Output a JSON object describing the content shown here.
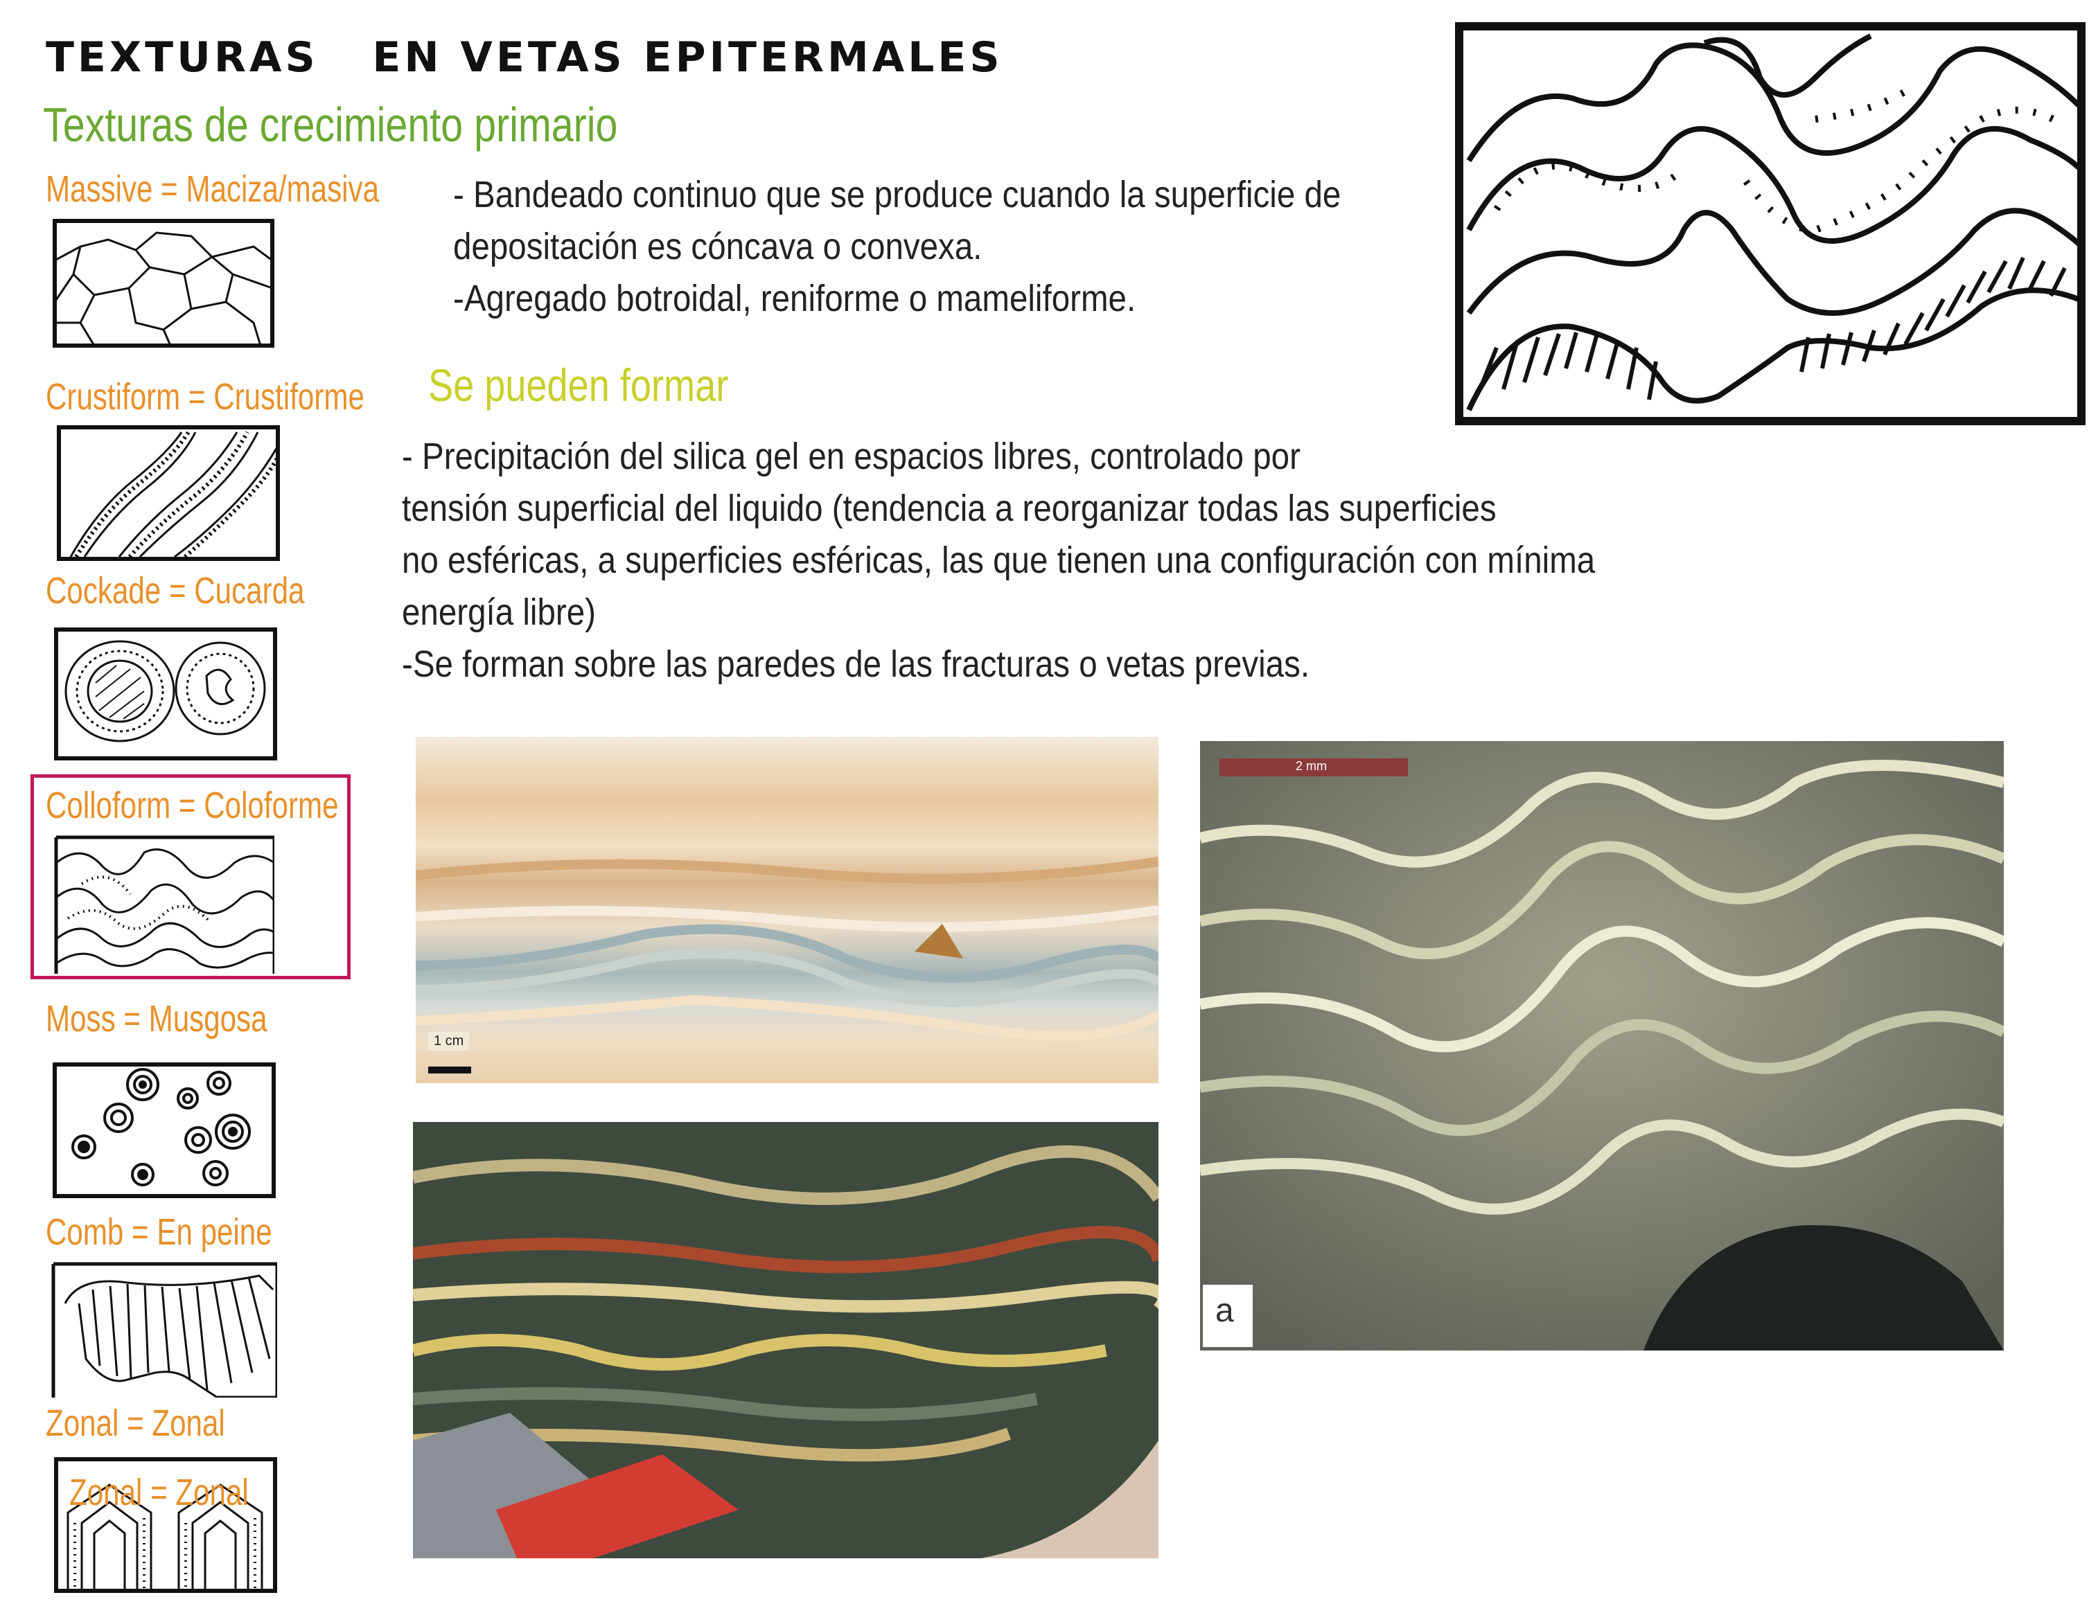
{
  "title": "TEXTURAS   EN VETAS EPITERMALES",
  "subtitle": "Texturas de crecimiento  primario",
  "textures": [
    {
      "label": "Massive =  Maciza/masiva",
      "icon": "massive-texture-sketch"
    },
    {
      "label": "Crustiform = Crustiforme",
      "icon": "crustiform-texture-sketch"
    },
    {
      "label": "Cockade = Cucarda",
      "icon": "cockade-texture-sketch"
    },
    {
      "label": "Colloform = Coloforme",
      "icon": "colloform-texture-sketch",
      "highlighted": true
    },
    {
      "label": "Moss = Musgosa",
      "icon": "moss-texture-sketch"
    },
    {
      "label": "Comb = En peine",
      "icon": "comb-texture-sketch"
    },
    {
      "label": "Zonal = Zonal",
      "icon": "zonal-texture-sketch"
    }
  ],
  "zonal_overlay": "Zonal = Zonal",
  "description": [
    "- Bandeado continuo que se produce cuando la superficie de",
    "depositación es cóncava o convexa.",
    "-Agregado botroidal, reniforme o mameliforme."
  ],
  "formation_heading": "Se pueden formar",
  "formation": [
    "- Precipitación del silica gel en espacios libres, controlado por",
    "tensión superficial del liquido (tendencia a reorganizar todas las superficies",
    "no esféricas, a superficies esféricas, las que tienen una configuración con mínima",
    "energía libre)",
    "-Se forman sobre las paredes de las fracturas o vetas previas."
  ],
  "photos": {
    "scale_1cm": "1 cm",
    "scale_2mm": "2 mm",
    "panel_label": "a"
  },
  "colors": {
    "title": "#111111",
    "subtitle": "#6aa832",
    "texture_label": "#e8902a",
    "formation_heading": "#c9cf2a",
    "highlight": "#c2185b"
  }
}
